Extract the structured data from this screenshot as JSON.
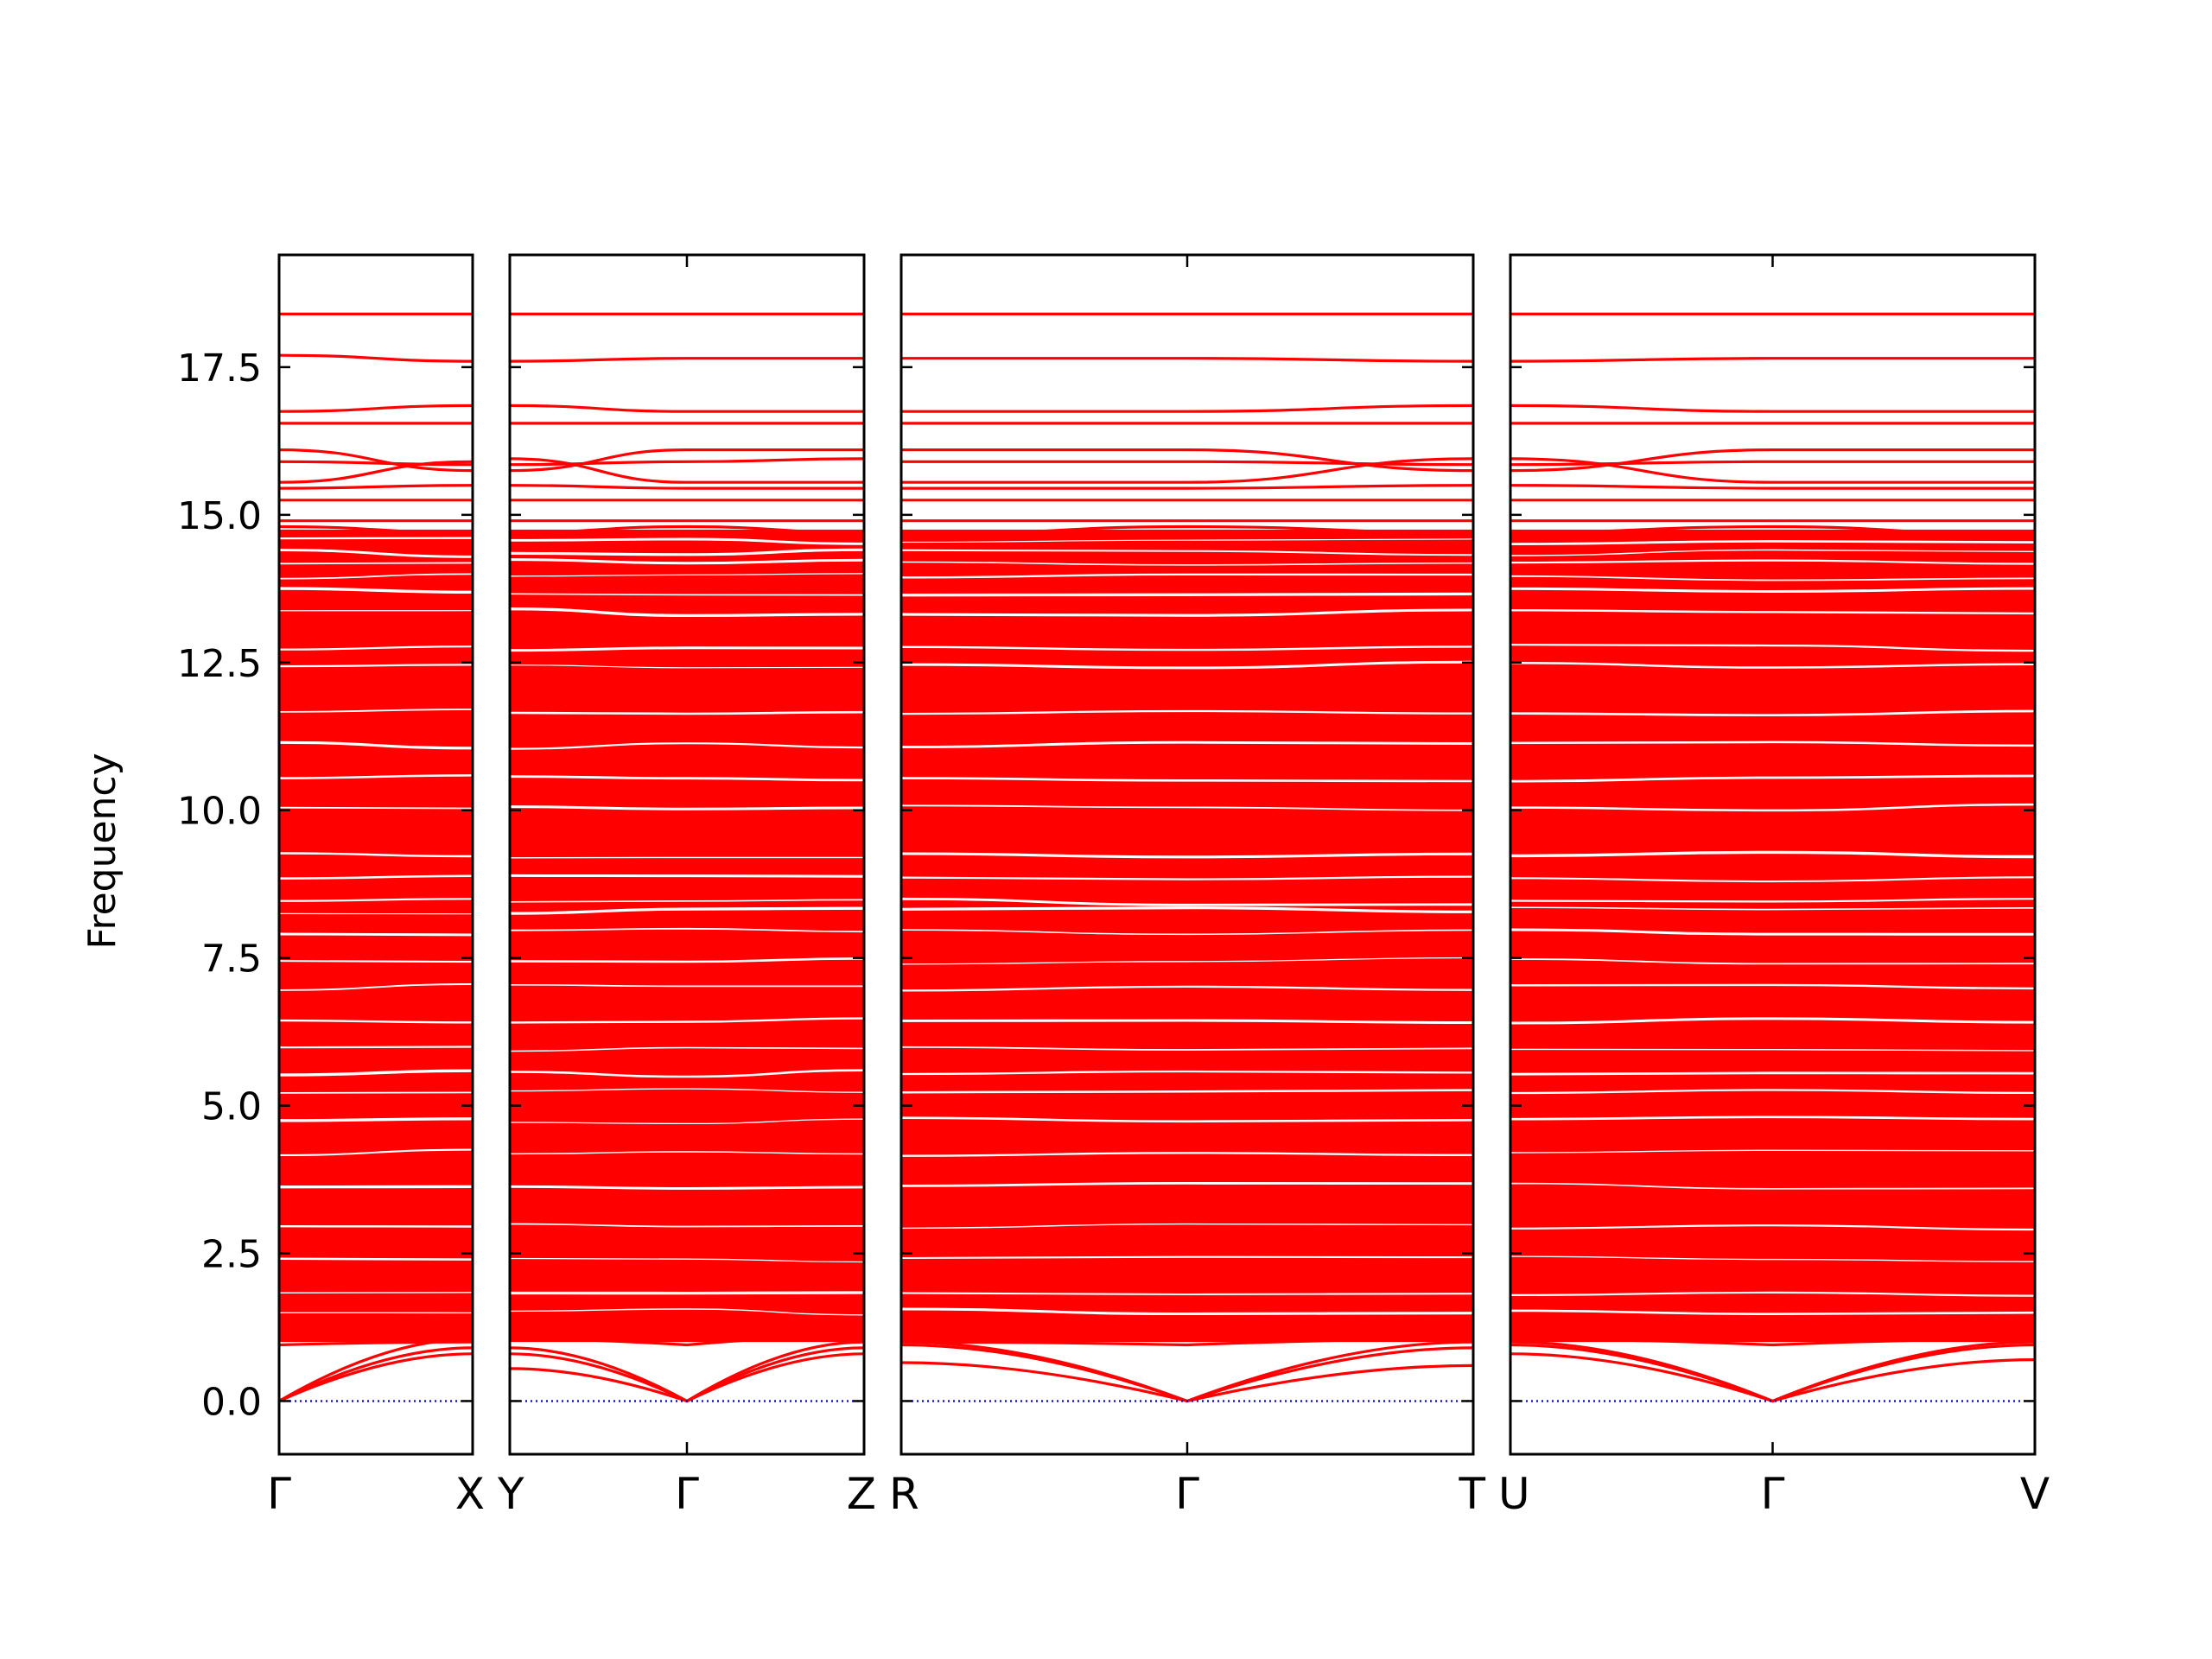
{
  "chart_data": {
    "type": "line",
    "title": "",
    "ylabel": "Frequency",
    "xlabel": "",
    "ylim": [
      -0.9,
      19.4
    ],
    "yticks": [
      0.0,
      2.5,
      5.0,
      7.5,
      10.0,
      12.5,
      15.0,
      17.5
    ],
    "ytick_labels": [
      "0.0",
      "2.5",
      "5.0",
      "7.5",
      "10.0",
      "12.5",
      "15.0",
      "17.5"
    ],
    "grid": false,
    "band_color": "#ff0000",
    "zero_line_color": "#0000cc",
    "band_density": "continuous dense set of phonon branches filling approximately 1.0 to 14.7",
    "panels": [
      {
        "kpoints": [
          "Γ",
          "X"
        ],
        "high_branches": [
          {
            "y": [
              18.4,
              18.4
            ]
          },
          {
            "y": [
              17.7,
              17.6
            ]
          },
          {
            "y": [
              16.75,
              16.85
            ]
          },
          {
            "y": [
              16.55,
              16.55
            ]
          },
          {
            "y": [
              16.1,
              15.75
            ]
          },
          {
            "y": [
              15.9,
              15.85
            ]
          },
          {
            "y": [
              15.55,
              15.9
            ]
          },
          {
            "y": [
              15.45,
              15.5
            ]
          },
          {
            "y": [
              15.25,
              15.25
            ]
          },
          {
            "y": [
              14.9,
              14.9
            ]
          },
          {
            "y": [
              14.8,
              14.7
            ]
          }
        ],
        "acoustic_branches": [
          {
            "y": [
              0.0,
              0.8
            ]
          },
          {
            "y": [
              0.0,
              0.9
            ]
          },
          {
            "y": [
              0.0,
              1.05
            ]
          },
          {
            "y": [
              0.95,
              1.0
            ]
          },
          {
            "y": [
              1.15,
              1.15
            ]
          }
        ]
      },
      {
        "kpoints": [
          "Y",
          "Γ",
          "Z"
        ],
        "high_branches": [
          {
            "y": [
              18.4,
              18.4,
              18.4
            ]
          },
          {
            "y": [
              17.6,
              17.65,
              17.65
            ]
          },
          {
            "y": [
              16.85,
              16.75,
              16.75
            ]
          },
          {
            "y": [
              16.55,
              16.55,
              16.55
            ]
          },
          {
            "y": [
              15.75,
              16.1,
              16.1
            ]
          },
          {
            "y": [
              15.85,
              15.9,
              15.95
            ]
          },
          {
            "y": [
              15.95,
              15.55,
              15.55
            ]
          },
          {
            "y": [
              15.5,
              15.45,
              15.45
            ]
          },
          {
            "y": [
              15.25,
              15.25,
              15.25
            ]
          },
          {
            "y": [
              14.9,
              14.9,
              14.9
            ]
          },
          {
            "y": [
              14.7,
              14.8,
              14.7
            ]
          }
        ],
        "acoustic_branches": [
          {
            "y": [
              0.9,
              0.0,
              0.8
            ]
          },
          {
            "y": [
              0.8,
              0.0,
              0.9
            ]
          },
          {
            "y": [
              0.55,
              0.0,
              1.0
            ]
          },
          {
            "y": [
              1.05,
              0.95,
              1.1
            ]
          },
          {
            "y": [
              1.25,
              1.15,
              1.4
            ]
          }
        ]
      },
      {
        "kpoints": [
          "R",
          "Γ",
          "T"
        ],
        "high_branches": [
          {
            "y": [
              18.4,
              18.4,
              18.4
            ]
          },
          {
            "y": [
              17.65,
              17.65,
              17.6
            ]
          },
          {
            "y": [
              16.75,
              16.75,
              16.85
            ]
          },
          {
            "y": [
              16.55,
              16.55,
              16.55
            ]
          },
          {
            "y": [
              16.1,
              16.1,
              15.75
            ]
          },
          {
            "y": [
              15.9,
              15.9,
              15.85
            ]
          },
          {
            "y": [
              15.55,
              15.55,
              15.95
            ]
          },
          {
            "y": [
              15.45,
              15.45,
              15.5
            ]
          },
          {
            "y": [
              15.25,
              15.25,
              15.25
            ]
          },
          {
            "y": [
              14.9,
              14.9,
              14.9
            ]
          },
          {
            "y": [
              14.65,
              14.8,
              14.7
            ]
          }
        ],
        "acoustic_branches": [
          {
            "y": [
              0.65,
              0.0,
              0.6
            ]
          },
          {
            "y": [
              0.95,
              0.0,
              1.0
            ]
          },
          {
            "y": [
              1.0,
              0.0,
              0.9
            ]
          },
          {
            "y": [
              1.0,
              0.95,
              1.05
            ]
          },
          {
            "y": [
              1.3,
              1.2,
              1.35
            ]
          }
        ]
      },
      {
        "kpoints": [
          "U",
          "Γ",
          "V"
        ],
        "high_branches": [
          {
            "y": [
              18.4,
              18.4,
              18.4
            ]
          },
          {
            "y": [
              17.6,
              17.65,
              17.65
            ]
          },
          {
            "y": [
              16.85,
              16.75,
              16.75
            ]
          },
          {
            "y": [
              16.55,
              16.55,
              16.55
            ]
          },
          {
            "y": [
              15.75,
              16.1,
              16.1
            ]
          },
          {
            "y": [
              15.85,
              15.9,
              15.9
            ]
          },
          {
            "y": [
              15.95,
              15.55,
              15.55
            ]
          },
          {
            "y": [
              15.5,
              15.45,
              15.45
            ]
          },
          {
            "y": [
              15.25,
              15.25,
              15.25
            ]
          },
          {
            "y": [
              14.9,
              14.9,
              14.9
            ]
          },
          {
            "y": [
              14.7,
              14.8,
              14.65
            ]
          }
        ],
        "acoustic_branches": [
          {
            "y": [
              0.8,
              0.0,
              0.7
            ]
          },
          {
            "y": [
              1.0,
              0.0,
              1.0
            ]
          },
          {
            "y": [
              0.95,
              0.0,
              0.95
            ]
          },
          {
            "y": [
              1.05,
              0.95,
              1.05
            ]
          },
          {
            "y": [
              1.35,
              1.2,
              1.3
            ]
          }
        ]
      }
    ]
  }
}
